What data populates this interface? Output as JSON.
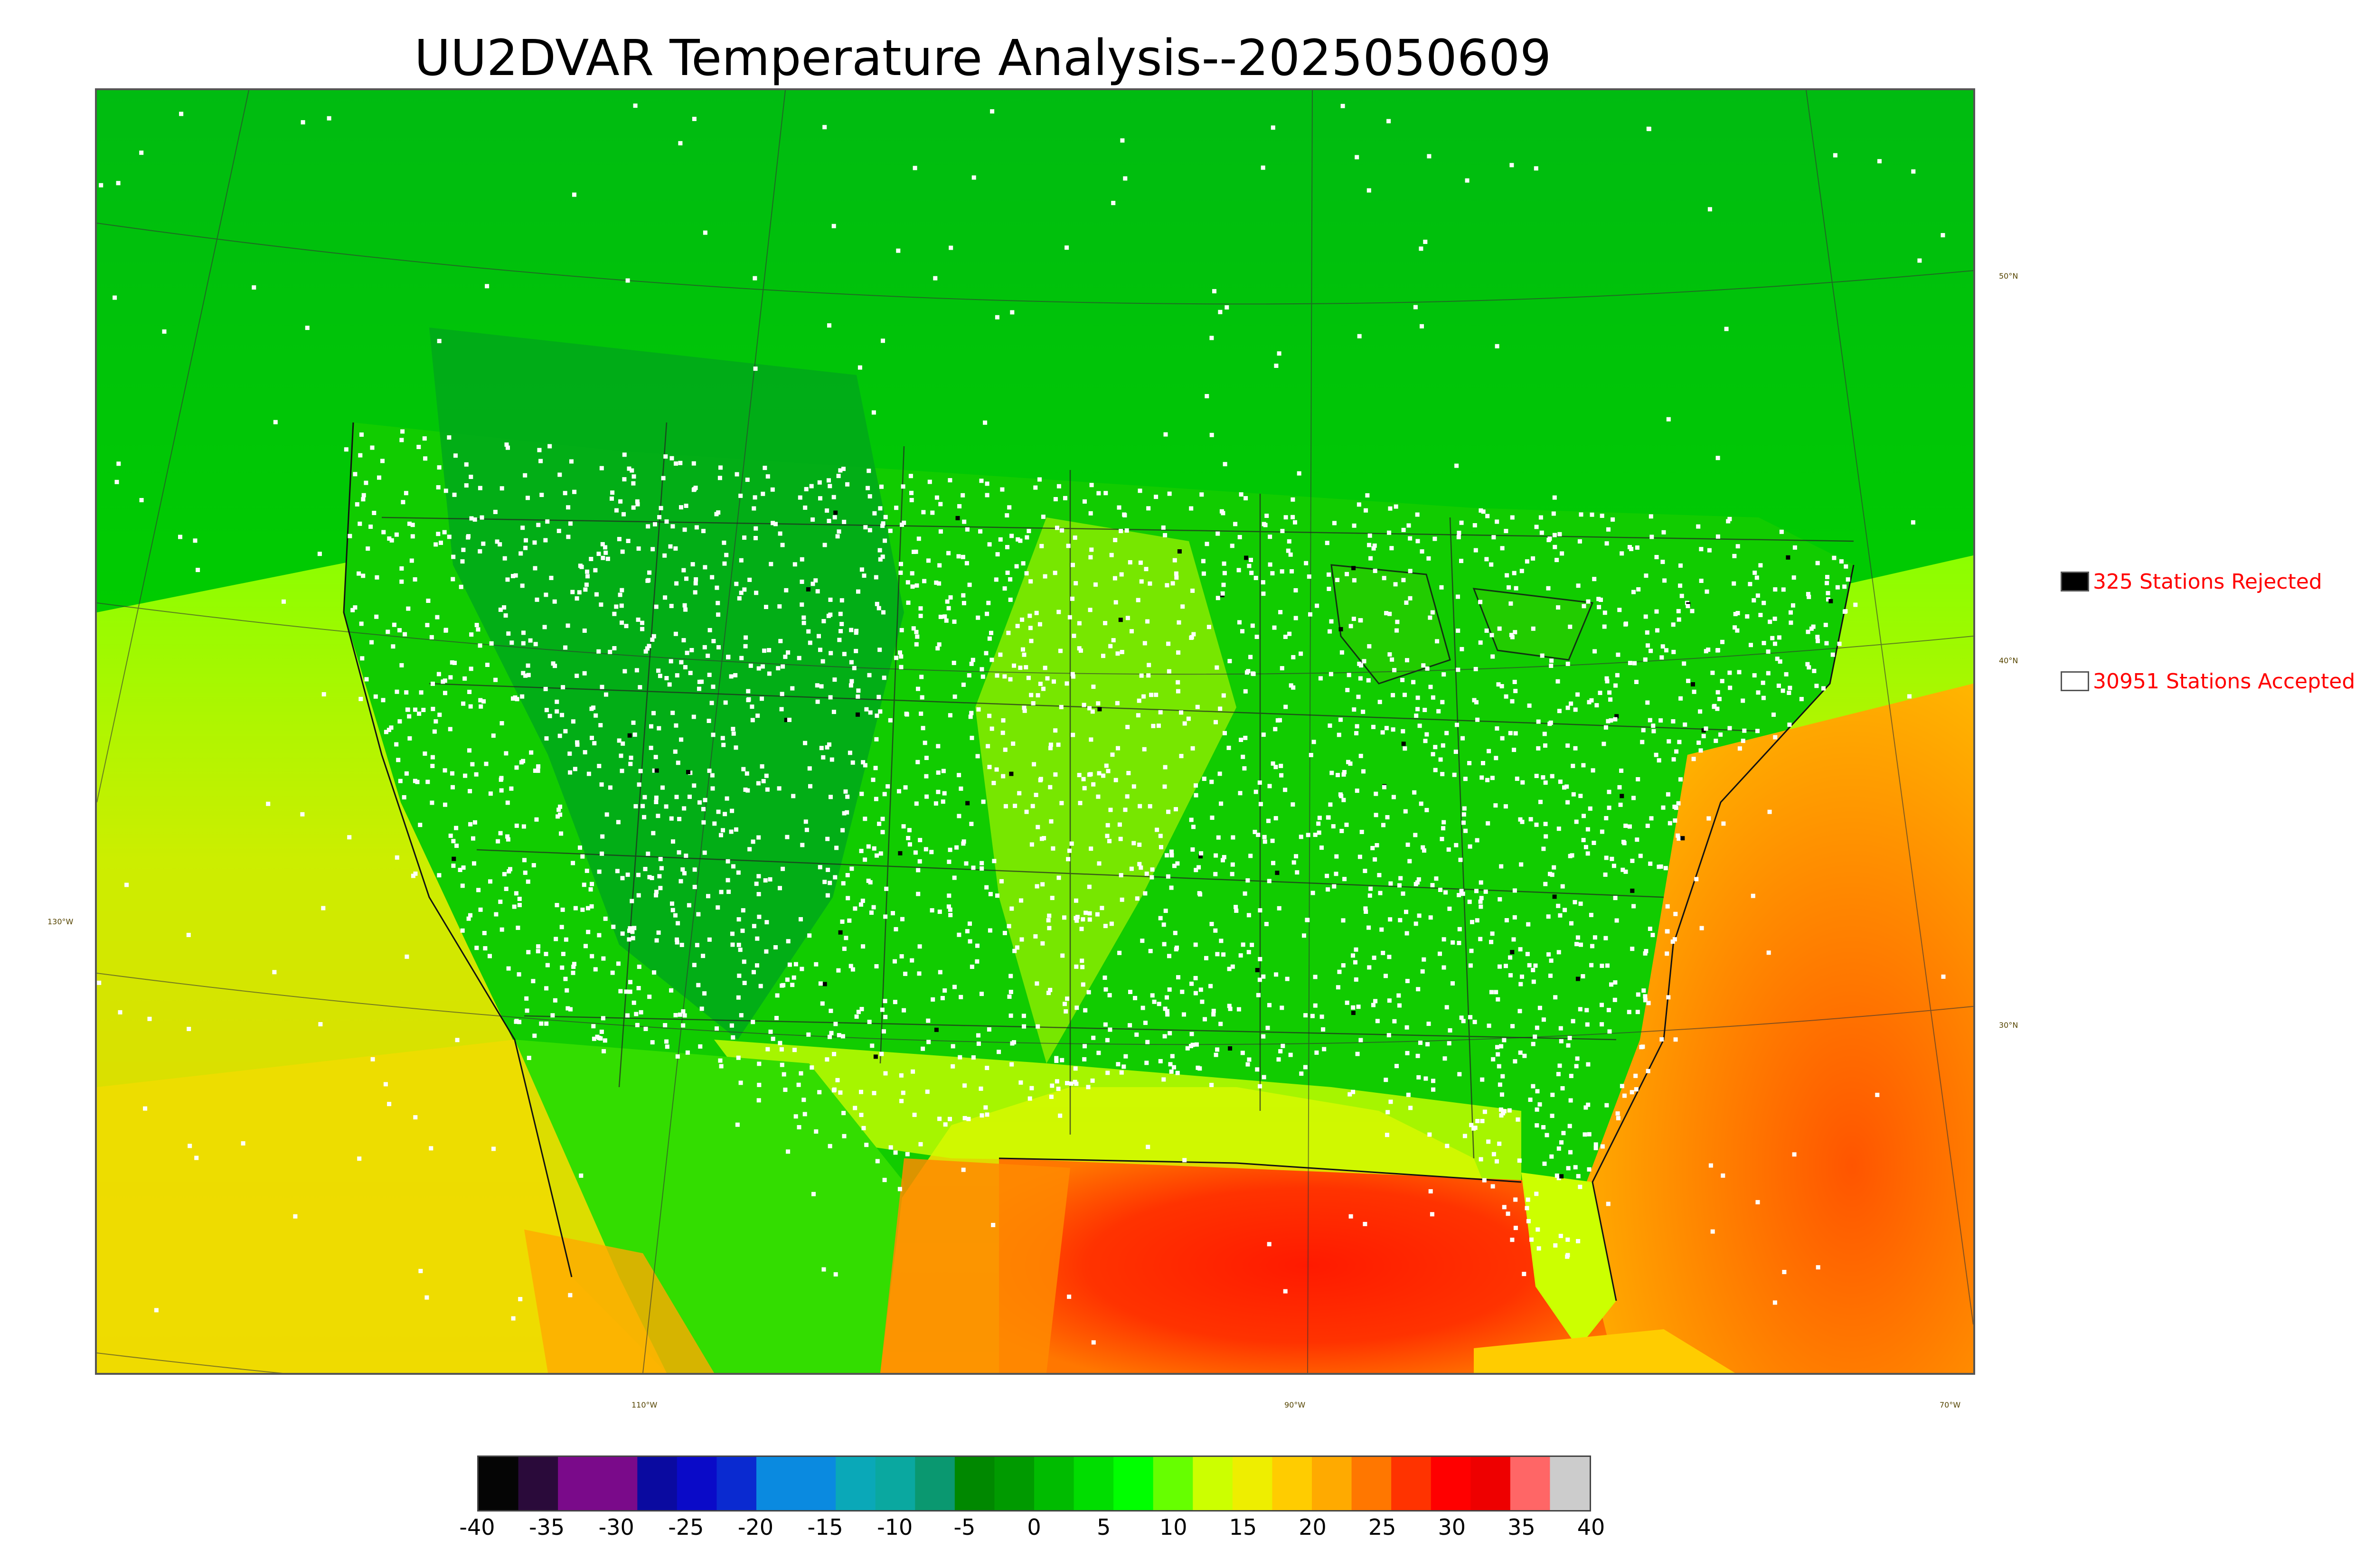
{
  "title": "UU2DVAR Temperature Analysis--2025050609",
  "legend": {
    "rejected": {
      "label": "325 Stations Rejected",
      "swatch_color": "#000000"
    },
    "accepted": {
      "label": "30951 Stations Accepted",
      "swatch_color": "#ffffff"
    }
  },
  "graticule": {
    "lat_labels": [
      "50°N",
      "40°N",
      "30°N"
    ],
    "lon_labels": [
      "130°W",
      "110°W",
      "90°W",
      "70°W"
    ]
  },
  "colorbar": {
    "ticks": [
      "-40",
      "-35",
      "-30",
      "-25",
      "-20",
      "-15",
      "-10",
      "-5",
      "0",
      "5",
      "10",
      "15",
      "20",
      "25",
      "30",
      "35",
      "40"
    ],
    "range": [
      -40,
      40
    ],
    "colors": [
      "#050505",
      "#2a0a3a",
      "#7a0a8a",
      "#7a0a8a",
      "#0a0aa0",
      "#0a0ac8",
      "#0a2ad0",
      "#0a8ae0",
      "#0a8ae0",
      "#0aa8b8",
      "#0aa8a0",
      "#0a9870",
      "#008800",
      "#009a00",
      "#00bb00",
      "#00dd00",
      "#00ff00",
      "#66ff00",
      "#ccff00",
      "#eeee00",
      "#ffcc00",
      "#ffaa00",
      "#ff7700",
      "#ff3300",
      "#ff0000",
      "#ee0000",
      "#ff6666",
      "#cccccc"
    ]
  },
  "colors": {
    "cold_land": "#00aa11",
    "mid_land": "#22dd00",
    "warm": "#ccee00",
    "hot": "#ff9900",
    "very_hot": "#ff2200",
    "station_accepted": "#ffffff",
    "station_rejected": "#000000"
  }
}
